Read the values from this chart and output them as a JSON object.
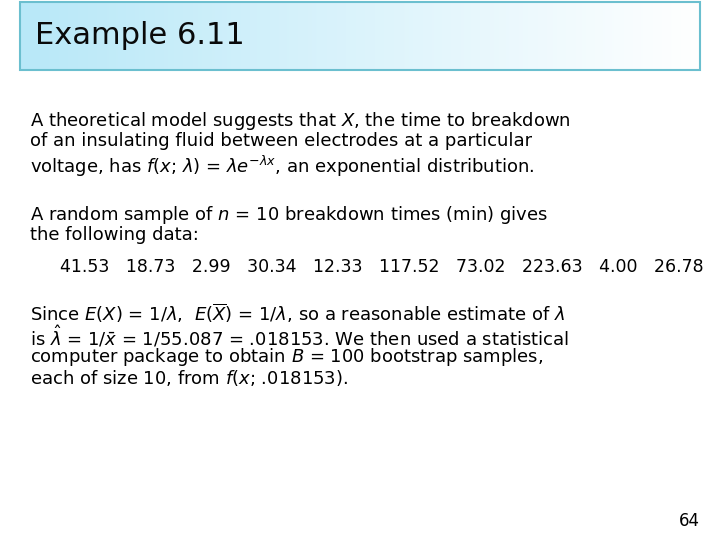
{
  "title": "Example 6.11",
  "title_box_facecolor": "#b8e8f8",
  "title_box_border": "#6bbfcf",
  "background_color": "#ffffff",
  "title_fontsize": 22,
  "body_fontsize": 13,
  "data_fontsize": 12.5,
  "page_number": "64",
  "para1_line1": "A theoretical model suggests that $X$, the time to breakdown",
  "para1_line2": "of an insulating fluid between electrodes at a particular",
  "para1_line3": "voltage, has $f$($x$; $\\lambda$) = $\\lambda e^{-\\lambda x}$, an exponential distribution.",
  "para2_line1": "A random sample of $n$ = 10 breakdown times (min) gives",
  "para2_line2": "the following data:",
  "data_values": "41.53   18.73   2.99   30.34   12.33   117.52   73.02   223.63   4.00   26.78",
  "para3_line1": "Since $E(X)$ = 1/$\\lambda$,  $E(\\overline{X})$ = 1/$\\lambda$, so a reasonable estimate of $\\lambda$",
  "para3_line2": "is $\\hat{\\lambda}$ = 1/$\\bar{x}$ = 1/55.087 = .018153. We then used a statistical",
  "para3_line3": "computer package to obtain $B$ = 100 bootstrap samples,",
  "para3_line4": "each of size 10, from $f$($x$; .018153)."
}
